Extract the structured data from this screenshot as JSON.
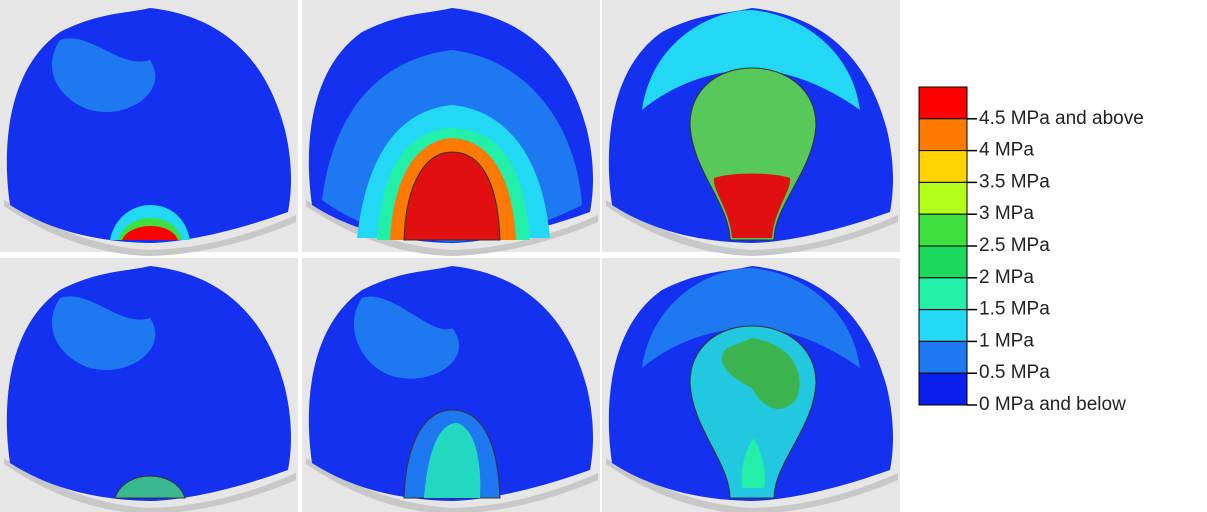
{
  "legend": {
    "entries": [
      {
        "label": "4.5 MPa and above",
        "color": "#ff0000"
      },
      {
        "label": "4 MPa",
        "color": "#ff7a00"
      },
      {
        "label": "3.5 MPa",
        "color": "#ffd400"
      },
      {
        "label": "3 MPa",
        "color": "#b4ff1a"
      },
      {
        "label": "2.5 MPa",
        "color": "#3ee03e"
      },
      {
        "label": "2 MPa",
        "color": "#19d85c"
      },
      {
        "label": "1.5 MPa",
        "color": "#22f0a8"
      },
      {
        "label": "1 MPa",
        "color": "#22d8f4"
      },
      {
        "label": "0.5 MPa",
        "color": "#1e78f0"
      },
      {
        "label": "0 MPa and below",
        "color": "#0a1ef0"
      }
    ]
  }
}
